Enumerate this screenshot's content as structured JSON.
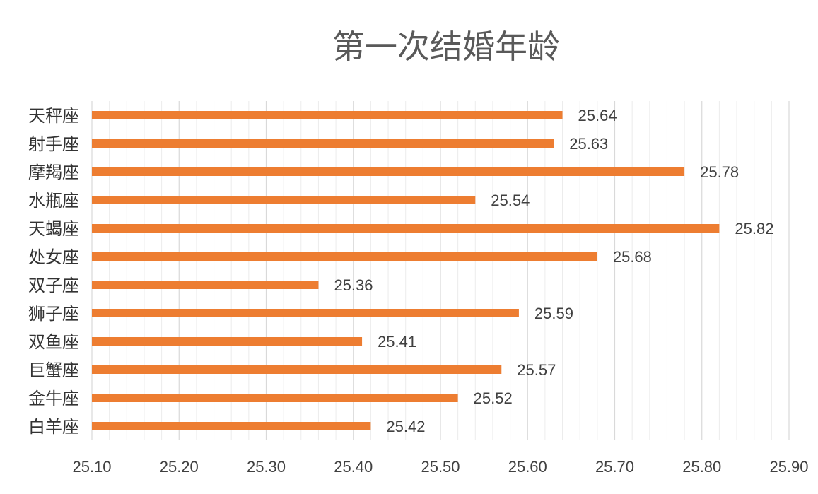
{
  "chart_data": {
    "type": "bar",
    "orientation": "horizontal",
    "title": "第一次结婚年龄",
    "categories": [
      "白羊座",
      "金牛座",
      "巨蟹座",
      "双鱼座",
      "狮子座",
      "双子座",
      "处女座",
      "天蝎座",
      "水瓶座",
      "摩羯座",
      "射手座",
      "天秤座"
    ],
    "values": [
      25.42,
      25.52,
      25.57,
      25.41,
      25.59,
      25.36,
      25.68,
      25.82,
      25.54,
      25.78,
      25.63,
      25.64
    ],
    "data_labels": [
      "25.42",
      "25.52",
      "25.57",
      "25.41",
      "25.59",
      "25.36",
      "25.68",
      "25.82",
      "25.54",
      "25.78",
      "25.63",
      "25.64"
    ],
    "x_ticks": [
      "25.10",
      "25.20",
      "25.30",
      "25.40",
      "25.50",
      "25.60",
      "25.70",
      "25.80",
      "25.90"
    ],
    "xlim": [
      25.1,
      25.9
    ],
    "minor_step": 0.02,
    "grid": true,
    "legend": "none",
    "bar_color": "#ed7d31"
  }
}
